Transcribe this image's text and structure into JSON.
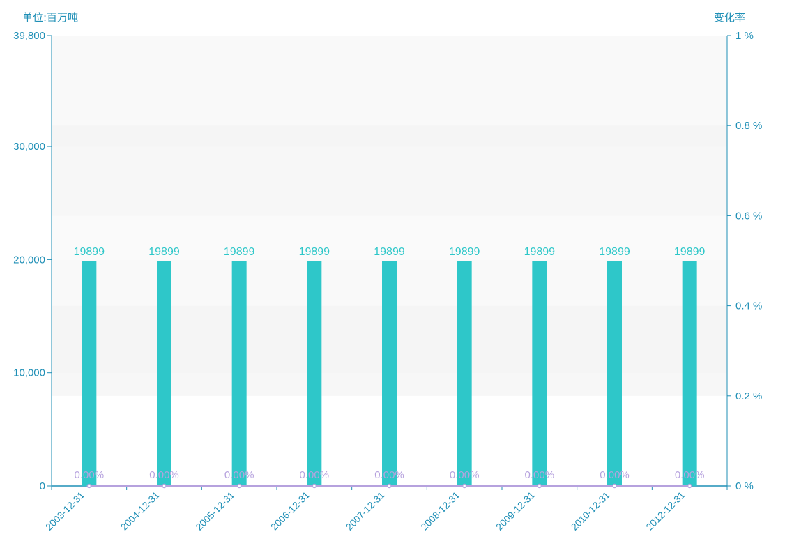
{
  "chart_title": "",
  "left_axis_unit": "单位:百万吨",
  "right_axis_unit": "变化率",
  "colors": {
    "bar": "#2ec7c9",
    "bar_label": "#2ec7c9",
    "rate_line": "#b6a2de",
    "axis": "#1f8fb6",
    "band_light": "#f7f7f7",
    "band_dark": "#f2f2f2"
  },
  "chart_data": {
    "type": "bar",
    "categories": [
      "2003-12-31",
      "2004-12-31",
      "2005-12-31",
      "2006-12-31",
      "2007-12-31",
      "2008-12-31",
      "2009-12-31",
      "2010-12-31",
      "2012-12-31"
    ],
    "series": [
      {
        "values": [
          19899,
          19899,
          19899,
          19899,
          19899,
          19899,
          19899,
          19899,
          19899
        ],
        "axis": "left",
        "labels": [
          "19899",
          "19899",
          "19899",
          "19899",
          "19899",
          "19899",
          "19899",
          "19899",
          "19899"
        ]
      },
      {
        "type": "line",
        "values": [
          0,
          0,
          0,
          0,
          0,
          0,
          0,
          0,
          0
        ],
        "axis": "right",
        "labels": [
          "0.00%",
          "0.00%",
          "0.00%",
          "0.00%",
          "0.00%",
          "0.00%",
          "0.00%",
          "0.00%",
          "0.00%"
        ]
      }
    ],
    "y_left": {
      "ylim": [
        0,
        39800
      ],
      "ticks": [
        "0",
        "10,000",
        "20,000",
        "30,000",
        "39,800"
      ]
    },
    "y_right": {
      "ylim": [
        0,
        1
      ],
      "ticks": [
        "0 %",
        "0.2 %",
        "0.4 %",
        "0.6 %",
        "0.8 %",
        "1 %"
      ]
    },
    "xlabel": "",
    "ylabel": ""
  }
}
